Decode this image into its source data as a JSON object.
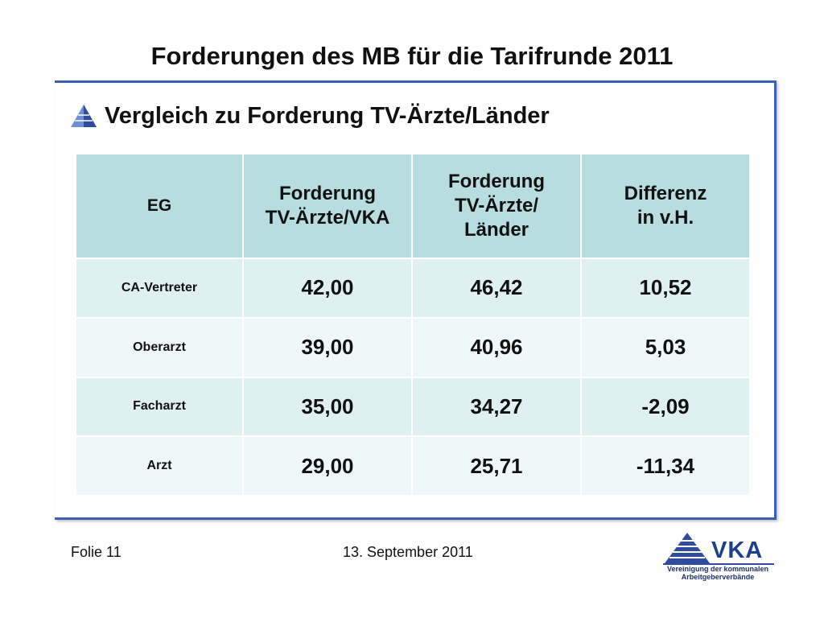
{
  "slide": {
    "title": "Forderungen des MB für die Tarifrunde 2011",
    "subtitle": "Vergleich zu Forderung TV-Ärzte/Länder"
  },
  "table": {
    "headers": [
      "EG",
      "Forderung\nTV-Ärzte/VKA",
      "Forderung\nTV-Ärzte/\nLänder",
      "Differenz\nin v.H."
    ],
    "rows": [
      [
        "CA-Vertreter",
        "42,00",
        "46,42",
        "10,52"
      ],
      [
        "Oberarzt",
        "39,00",
        "40,96",
        "5,03"
      ],
      [
        "Facharzt",
        "35,00",
        "34,27",
        "-2,09"
      ],
      [
        "Arzt",
        "29,00",
        "25,71",
        "-11,34"
      ]
    ]
  },
  "footer": {
    "slide_number": "Folie 11",
    "date": "13. September 2011"
  },
  "logo": {
    "name": "VKA",
    "line1": "Vereinigung der kommunalen",
    "line2": "Arbeitgeberverbände"
  },
  "colors": {
    "frame": "#3b5fb5",
    "header_bg": "#b7dde0",
    "row_dark": "#def0f2",
    "row_light": "#eef8f9"
  }
}
